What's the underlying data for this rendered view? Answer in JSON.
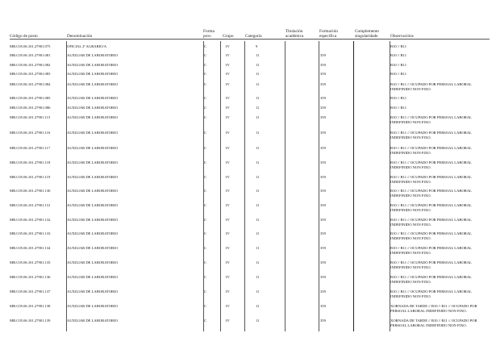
{
  "headers": {
    "codigo": "Código de posto",
    "denominacion": "Denominación",
    "forma": "Forma prov.",
    "grupo": "Grupo",
    "categoria": "Categoría",
    "titulacion": "Titulación académica",
    "formacion": "Formación específica",
    "complemento": "Complemento singularidade",
    "observacions": "Observacións"
  },
  "rows": [
    {
      "codigo": "MR.C05.06.101.27901.075",
      "denominacion": "OFICIAL 2ª AGRARIO/A",
      "forma": "C",
      "grupo": "IV",
      "categoria": "9",
      "formacion": "",
      "observacions": "B10 // B11"
    },
    {
      "codigo": "MR.C05.06.101.27901.081",
      "denominacion": "AUXILIAR DE LABORATORIO",
      "forma": "C",
      "grupo": "IV",
      "categoria": "11",
      "formacion": "359",
      "observacions": "B10 // B11"
    },
    {
      "codigo": "MR.C05.06.101.27901.082",
      "denominacion": "AUXILIAR DE LABORATORIO",
      "forma": "C",
      "grupo": "IV",
      "categoria": "11",
      "formacion": "359",
      "observacions": "B10 // B11"
    },
    {
      "codigo": "MR.C05.06.101.27901.083",
      "denominacion": "AUXILIAR DE LABORATORIO",
      "forma": "C",
      "grupo": "IV",
      "categoria": "11",
      "formacion": "359",
      "observacions": "B10 // B11"
    },
    {
      "codigo": "MR.C05.06.101.27901.084",
      "denominacion": "AUXILIAR DE LABORATORIO",
      "forma": "C",
      "grupo": "IV",
      "categoria": "11",
      "formacion": "359",
      "observacions": "B10 // B11 // OCUPADO POR PERSOAL LABORAL INDEFINIDO NON FIXO."
    },
    {
      "codigo": "MR.C05.06.101.27901.085",
      "denominacion": "AUXILIAR DE LABORATORIO",
      "forma": "C",
      "grupo": "IV",
      "categoria": "11",
      "formacion": "359",
      "observacions": "B10 // B11"
    },
    {
      "codigo": "MR.C05.06.101.27901.086",
      "denominacion": "AUXILIAR DE LABORATORIO",
      "forma": "C",
      "grupo": "IV",
      "categoria": "11",
      "formacion": "359",
      "observacions": "B10 // B11"
    },
    {
      "codigo": "MR.C05.06.101.27901.115",
      "denominacion": "AUXILIAR DE LABORATORIO",
      "forma": "C",
      "grupo": "IV",
      "categoria": "11",
      "formacion": "359",
      "observacions": "B10 // B11 // OCUPADO POR PERSOAL LABORAL INDEFINIDO NON FIXO."
    },
    {
      "codigo": "MR.C05.06.101.27901.116",
      "denominacion": "AUXILIAR DE LABORATORIO",
      "forma": "C",
      "grupo": "IV",
      "categoria": "11",
      "formacion": "359",
      "observacions": "B10 // B11 // OCUPADO POR PERSOAL LABORAL INDEFINIDO NON FIXO."
    },
    {
      "codigo": "MR.C05.06.101.27901.117",
      "denominacion": "AUXILIAR DE LABORATORIO",
      "forma": "C",
      "grupo": "IV",
      "categoria": "11",
      "formacion": "359",
      "observacions": "B10 // B11 // OCUPADO POR PERSOAL LABORAL INDEFINIDO NON FIXO."
    },
    {
      "codigo": "MR.C05.06.101.27901.118",
      "denominacion": "AUXILIAR DE LABORATORIO",
      "forma": "C",
      "grupo": "IV",
      "categoria": "11",
      "formacion": "359",
      "observacions": "B10 // B11 // OCUPADO POR PERSOAL LABORAL INDEFINIDO NON FIXO."
    },
    {
      "codigo": "MR.C05.06.101.27901.119",
      "denominacion": "AUXILIAR DE LABORATORIO",
      "forma": "C",
      "grupo": "IV",
      "categoria": "11",
      "formacion": "359",
      "observacions": "B10 // B11 // OCUPADO POR PERSOAL LABORAL INDEFINIDO NON FIXO."
    },
    {
      "codigo": "MR.C05.06.101.27901.130",
      "denominacion": "AUXILIAR DE LABORATORIO",
      "forma": "C",
      "grupo": "IV",
      "categoria": "11",
      "formacion": "359",
      "observacions": "B10 // B11 // OCUPADO POR PERSOAL LABORAL INDEFINIDO NON FIXO."
    },
    {
      "codigo": "MR.C05.06.101.27901.131",
      "denominacion": "AUXILIAR DE LABORATORIO",
      "forma": "C",
      "grupo": "IV",
      "categoria": "11",
      "formacion": "359",
      "observacions": "B10 // B11 // OCUPADO POR PERSOAL LABORAL INDEFINIDO NON FIXO."
    },
    {
      "codigo": "MR.C05.06.101.27901.132",
      "denominacion": "AUXILIAR DE LABORATORIO",
      "forma": "C",
      "grupo": "IV",
      "categoria": "11",
      "formacion": "359",
      "observacions": "B10 // B11 // OCUPADO POR PERSOAL LABORAL INDEFINIDO NON FIXO."
    },
    {
      "codigo": "MR.C05.06.101.27901.133",
      "denominacion": "AUXILIAR DE LABORATORIO",
      "forma": "C",
      "grupo": "IV",
      "categoria": "11",
      "formacion": "359",
      "observacions": "B10 // B11 // OCUPADO POR PERSOAL LABORAL INDEFINIDO NON FIXO."
    },
    {
      "codigo": "MR.C05.06.101.27901.134",
      "denominacion": "AUXILIAR DE LABORATORIO",
      "forma": "C",
      "grupo": "IV",
      "categoria": "11",
      "formacion": "359",
      "observacions": "B10 // B11 // OCUPADO POR PERSOAL LABORAL INDEFINIDO NON FIXO."
    },
    {
      "codigo": "MR.C05.06.101.27901.135",
      "denominacion": "AUXILIAR DE LABORATORIO",
      "forma": "C",
      "grupo": "IV",
      "categoria": "11",
      "formacion": "359",
      "observacions": "B10 // B11 // OCUPADO POR PERSOAL LABORAL INDEFINIDO NON FIXO."
    },
    {
      "codigo": "MR.C05.06.101.27901.136",
      "denominacion": "AUXILIAR DE LABORATORIO",
      "forma": "C",
      "grupo": "IV",
      "categoria": "11",
      "formacion": "359",
      "observacions": "B10 // B11 // OCUPADO POR PERSOAL LABORAL INDEFINIDO NON FIXO."
    },
    {
      "codigo": "MR.C05.06.101.27901.137",
      "denominacion": "AUXILIAR DE LABORATORIO",
      "forma": "C",
      "grupo": "IV",
      "categoria": "11",
      "formacion": "359",
      "observacions": "B10 // B11 // OCUPADO POR PERSOAL LABORAL INDEFINIDO NON FIXO."
    },
    {
      "codigo": "MR.C05.06.101.27901.138",
      "denominacion": "AUXILIAR DE LABORATORIO",
      "forma": "C",
      "grupo": "IV",
      "categoria": "11",
      "formacion": "359",
      "observacions": "XORNADA DE TARDE // B10 // B11 // OCUPADO POR PERSOAL LABORAL INDEFINIDO NON FIXO."
    },
    {
      "codigo": "MR.C05.06.101.27901.139",
      "denominacion": "AUXILIAR DE LABORATORIO",
      "forma": "C",
      "grupo": "IV",
      "categoria": "11",
      "formacion": "359",
      "observacions": "XORNADA DE TARDE // B10 // B11 // OCUPADO POR PERSOAL LABORAL INDEFINIDO NON FIXO."
    }
  ]
}
